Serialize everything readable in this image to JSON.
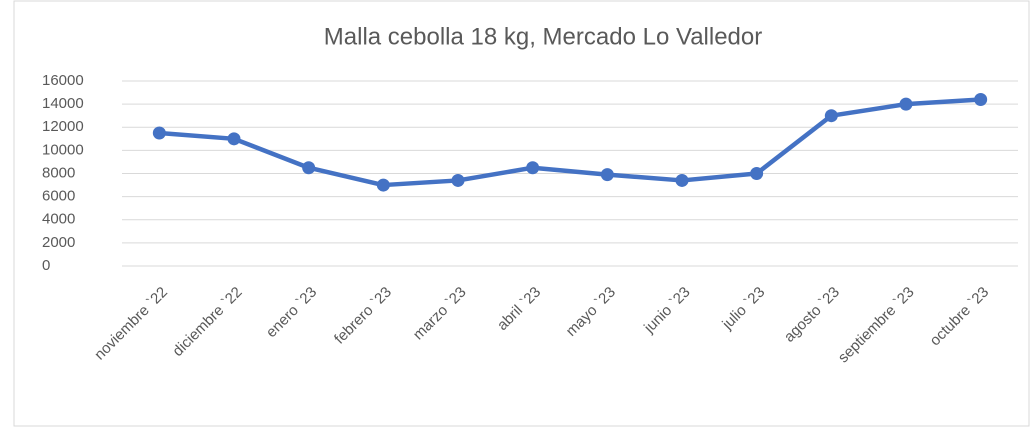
{
  "chart_data": {
    "type": "line",
    "title": "Malla cebolla 18 kg, Mercado Lo Valledor",
    "categories": [
      "noviembre `22",
      "diciembre `22",
      "enero `23",
      "febrero `23",
      "marzo `23",
      "abril `23",
      "mayo `23",
      "junio `23",
      "julio `23",
      "agosto `23",
      "septiembre `23",
      "octubre `23"
    ],
    "values": [
      11500,
      11000,
      8500,
      7000,
      7400,
      8500,
      7900,
      7400,
      8000,
      13000,
      14000,
      14400
    ],
    "color": "#4472c4",
    "ylim": [
      0,
      16000
    ],
    "yticks": [
      0,
      2000,
      4000,
      6000,
      8000,
      10000,
      12000,
      14000,
      16000
    ],
    "grid": true
  }
}
